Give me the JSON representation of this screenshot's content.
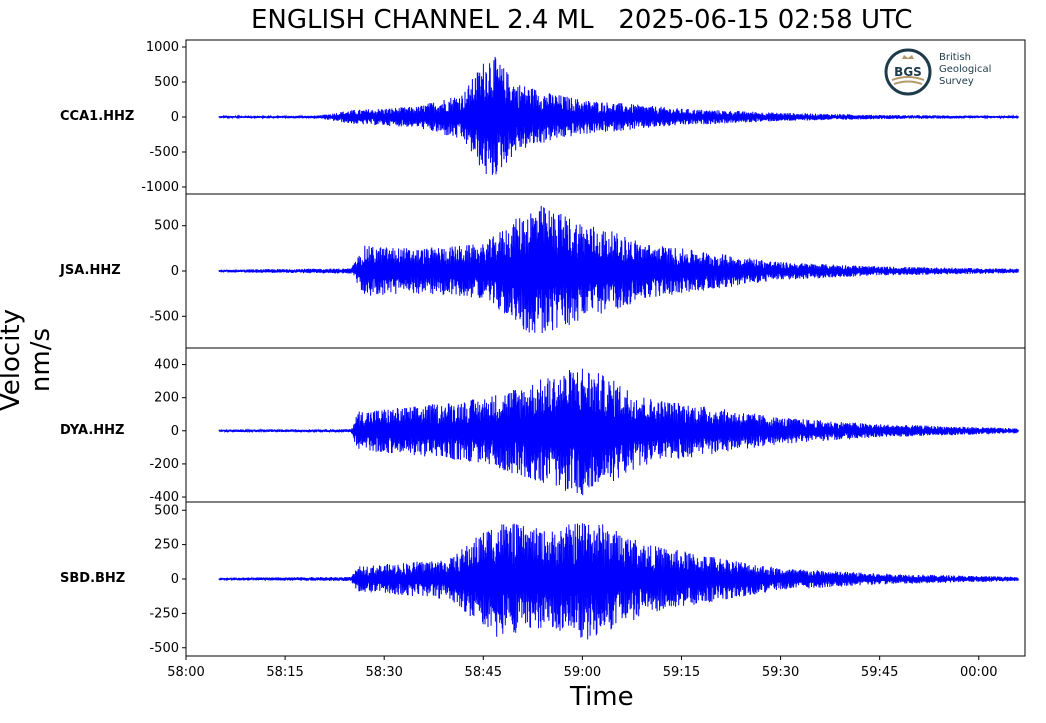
{
  "title": "ENGLISH CHANNEL 2.4 ML   2025-06-15 02:58 UTC",
  "ylabel": "Velocity nm/s",
  "xlabel": "Time",
  "logo": {
    "initials": "BGS",
    "line1": "British",
    "line2": "Geological",
    "line3": "Survey"
  },
  "x_ticks": [
    "58:00",
    "58:15",
    "58:30",
    "58:45",
    "59:00",
    "59:15",
    "59:30",
    "59:45",
    "00:00"
  ],
  "colors": {
    "trace": "#0000ff",
    "axes": "#000000"
  },
  "chart_data": {
    "type": "line",
    "x_unit": "time (mm:ss UTC, starting 02:58:00)",
    "x_range": [
      "58:00",
      "00:07"
    ],
    "trace_window": [
      "58:05",
      "00:06"
    ],
    "series": [
      {
        "name": "CCA1.HHZ",
        "ylim": [
          -1100,
          1100
        ],
        "yticks": [
          1000,
          500,
          0,
          -500,
          -1000
        ],
        "ytick_labels": [
          "1000",
          "500",
          "0",
          "-500",
          "-1000"
        ],
        "envelope": [
          {
            "t": "58:05",
            "amp": 15
          },
          {
            "t": "58:20",
            "amp": 20
          },
          {
            "t": "58:25",
            "amp": 100
          },
          {
            "t": "58:35",
            "amp": 150
          },
          {
            "t": "58:42",
            "amp": 350
          },
          {
            "t": "58:46",
            "amp": 950
          },
          {
            "t": "58:50",
            "amp": 500
          },
          {
            "t": "58:55",
            "amp": 350
          },
          {
            "t": "59:00",
            "amp": 250
          },
          {
            "t": "59:15",
            "amp": 120
          },
          {
            "t": "59:30",
            "amp": 60
          },
          {
            "t": "59:45",
            "amp": 30
          },
          {
            "t": "00:06",
            "amp": 15
          }
        ]
      },
      {
        "name": "JSA.HHZ",
        "ylim": [
          -850,
          850
        ],
        "yticks": [
          500,
          0,
          -500
        ],
        "ytick_labels": [
          "500",
          "0",
          "-500"
        ],
        "envelope": [
          {
            "t": "58:05",
            "amp": 15
          },
          {
            "t": "58:25",
            "amp": 30
          },
          {
            "t": "58:27",
            "amp": 280
          },
          {
            "t": "58:35",
            "amp": 250
          },
          {
            "t": "58:45",
            "amp": 300
          },
          {
            "t": "58:53",
            "amp": 750
          },
          {
            "t": "59:00",
            "amp": 550
          },
          {
            "t": "59:10",
            "amp": 300
          },
          {
            "t": "59:30",
            "amp": 100
          },
          {
            "t": "59:45",
            "amp": 50
          },
          {
            "t": "00:06",
            "amp": 25
          }
        ]
      },
      {
        "name": "DYA.HHZ",
        "ylim": [
          -430,
          500
        ],
        "yticks": [
          400,
          200,
          0,
          -200,
          -400
        ],
        "ytick_labels": [
          "400",
          "200",
          "0",
          "-200",
          "-400"
        ],
        "envelope": [
          {
            "t": "58:05",
            "amp": 8
          },
          {
            "t": "58:25",
            "amp": 10
          },
          {
            "t": "58:26",
            "amp": 120
          },
          {
            "t": "58:35",
            "amp": 150
          },
          {
            "t": "58:45",
            "amp": 200
          },
          {
            "t": "58:55",
            "amp": 330
          },
          {
            "t": "59:00",
            "amp": 400
          },
          {
            "t": "59:10",
            "amp": 200
          },
          {
            "t": "59:30",
            "amp": 80
          },
          {
            "t": "59:45",
            "amp": 40
          },
          {
            "t": "00:06",
            "amp": 15
          }
        ]
      },
      {
        "name": "SBD.BHZ",
        "ylim": [
          -560,
          560
        ],
        "yticks": [
          500,
          250,
          0,
          -250,
          -500
        ],
        "ytick_labels": [
          "500",
          "250",
          "0",
          "-250",
          "-500"
        ],
        "envelope": [
          {
            "t": "58:05",
            "amp": 10
          },
          {
            "t": "58:25",
            "amp": 15
          },
          {
            "t": "58:26",
            "amp": 90
          },
          {
            "t": "58:40",
            "amp": 150
          },
          {
            "t": "58:47",
            "amp": 430
          },
          {
            "t": "58:55",
            "amp": 350
          },
          {
            "t": "59:01",
            "amp": 450
          },
          {
            "t": "59:10",
            "amp": 250
          },
          {
            "t": "59:30",
            "amp": 80
          },
          {
            "t": "59:45",
            "amp": 40
          },
          {
            "t": "00:06",
            "amp": 15
          }
        ]
      }
    ]
  }
}
